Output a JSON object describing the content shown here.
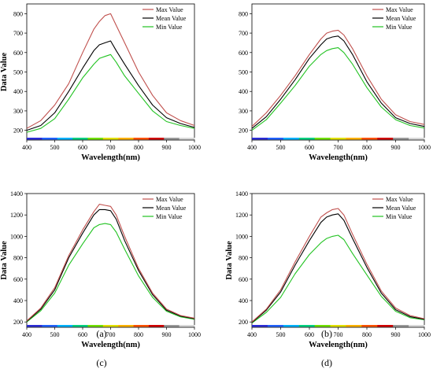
{
  "panel_caption_labels": [
    "(a)",
    "(b)",
    "(c)",
    "(d)"
  ],
  "colors": {
    "max": "#c0504d",
    "mean": "#000000",
    "min": "#22c322"
  },
  "chart_data": [
    {
      "type": "line",
      "caption": "(a)",
      "xlabel": "Wavelength(nm)",
      "ylabel": "Data Value",
      "xlim": [
        400,
        1000
      ],
      "ylim": [
        150,
        850
      ],
      "x_ticks": [
        400,
        500,
        600,
        700,
        800,
        900,
        1000
      ],
      "y_ticks": [
        200,
        300,
        400,
        500,
        600,
        700,
        800
      ],
      "legend_position": "top-right",
      "x": [
        400,
        450,
        500,
        550,
        600,
        640,
        660,
        680,
        700,
        720,
        750,
        800,
        850,
        900,
        950,
        1000
      ],
      "series": [
        {
          "name": "Max Value",
          "key": "max",
          "values": [
            210,
            250,
            330,
            440,
            600,
            720,
            760,
            790,
            800,
            740,
            650,
            500,
            380,
            290,
            250,
            225
          ]
        },
        {
          "name": "Mean Value",
          "key": "mean",
          "values": [
            200,
            225,
            290,
            400,
            520,
            610,
            640,
            650,
            660,
            610,
            540,
            430,
            330,
            265,
            235,
            215
          ]
        },
        {
          "name": "Min  Value",
          "key": "min",
          "values": [
            190,
            210,
            260,
            360,
            470,
            540,
            570,
            580,
            590,
            550,
            480,
            390,
            300,
            245,
            225,
            210
          ]
        }
      ]
    },
    {
      "type": "line",
      "caption": "(b)",
      "xlabel": "Wavelength(nm)",
      "ylabel": "",
      "xlim": [
        400,
        1000
      ],
      "ylim": [
        150,
        850
      ],
      "x_ticks": [
        400,
        500,
        600,
        700,
        800,
        900,
        1000
      ],
      "y_ticks": [
        200,
        300,
        400,
        500,
        600,
        700,
        800
      ],
      "legend_position": "top-right",
      "x": [
        400,
        450,
        500,
        550,
        600,
        640,
        660,
        680,
        700,
        720,
        750,
        800,
        850,
        900,
        950,
        1000
      ],
      "series": [
        {
          "name": "Max Value",
          "key": "max",
          "values": [
            220,
            290,
            380,
            480,
            590,
            670,
            700,
            710,
            715,
            690,
            620,
            480,
            360,
            280,
            245,
            230
          ]
        },
        {
          "name": "Mean Value",
          "key": "mean",
          "values": [
            210,
            270,
            360,
            460,
            570,
            640,
            670,
            680,
            685,
            660,
            590,
            450,
            340,
            265,
            235,
            220
          ]
        },
        {
          "name": "Min  Value",
          "key": "min",
          "values": [
            200,
            255,
            340,
            430,
            530,
            590,
            610,
            620,
            625,
            600,
            540,
            420,
            320,
            255,
            225,
            212
          ]
        }
      ]
    },
    {
      "type": "line",
      "caption": "(c)",
      "xlabel": "Wavelength(nm)",
      "ylabel": "Data Value",
      "xlim": [
        400,
        1000
      ],
      "ylim": [
        150,
        1400
      ],
      "x_ticks": [
        400,
        500,
        600,
        700,
        800,
        900,
        1000
      ],
      "y_ticks": [
        200,
        400,
        600,
        800,
        1000,
        1200,
        1400
      ],
      "legend_position": "top-right",
      "x": [
        400,
        450,
        500,
        550,
        600,
        640,
        660,
        680,
        700,
        720,
        750,
        800,
        850,
        900,
        950,
        1000
      ],
      "series": [
        {
          "name": "Max Value",
          "key": "max",
          "values": [
            210,
            330,
            520,
            820,
            1060,
            1230,
            1300,
            1290,
            1280,
            1200,
            1000,
            700,
            470,
            320,
            260,
            235
          ]
        },
        {
          "name": "Mean Value",
          "key": "mean",
          "values": [
            205,
            320,
            500,
            800,
            1030,
            1200,
            1250,
            1250,
            1240,
            1160,
            960,
            680,
            455,
            310,
            255,
            230
          ]
        },
        {
          "name": "Min  Value",
          "key": "min",
          "values": [
            200,
            305,
            470,
            730,
            930,
            1080,
            1110,
            1120,
            1110,
            1040,
            880,
            630,
            430,
            300,
            248,
            225
          ]
        }
      ]
    },
    {
      "type": "line",
      "caption": "(d)",
      "xlabel": "Wavelength(nm)",
      "ylabel": "Data Value",
      "xlim": [
        400,
        1000
      ],
      "ylim": [
        150,
        1400
      ],
      "x_ticks": [
        400,
        500,
        600,
        700,
        800,
        900,
        1000
      ],
      "y_ticks": [
        200,
        400,
        600,
        800,
        1000,
        1200,
        1400
      ],
      "legend_position": "top-right",
      "x": [
        400,
        450,
        500,
        550,
        600,
        640,
        660,
        680,
        700,
        720,
        750,
        800,
        850,
        900,
        950,
        1000
      ],
      "series": [
        {
          "name": "Max Value",
          "key": "max",
          "values": [
            200,
            320,
            500,
            760,
            1000,
            1180,
            1220,
            1250,
            1260,
            1200,
            1020,
            740,
            490,
            330,
            260,
            230
          ]
        },
        {
          "name": "Mean Value",
          "key": "mean",
          "values": [
            195,
            310,
            480,
            730,
            960,
            1130,
            1180,
            1200,
            1210,
            1150,
            980,
            710,
            470,
            315,
            250,
            225
          ]
        },
        {
          "name": "Min  Value",
          "key": "min",
          "values": [
            190,
            290,
            430,
            650,
            830,
            940,
            980,
            1000,
            1010,
            970,
            840,
            640,
            440,
            300,
            240,
            220
          ]
        }
      ]
    }
  ]
}
